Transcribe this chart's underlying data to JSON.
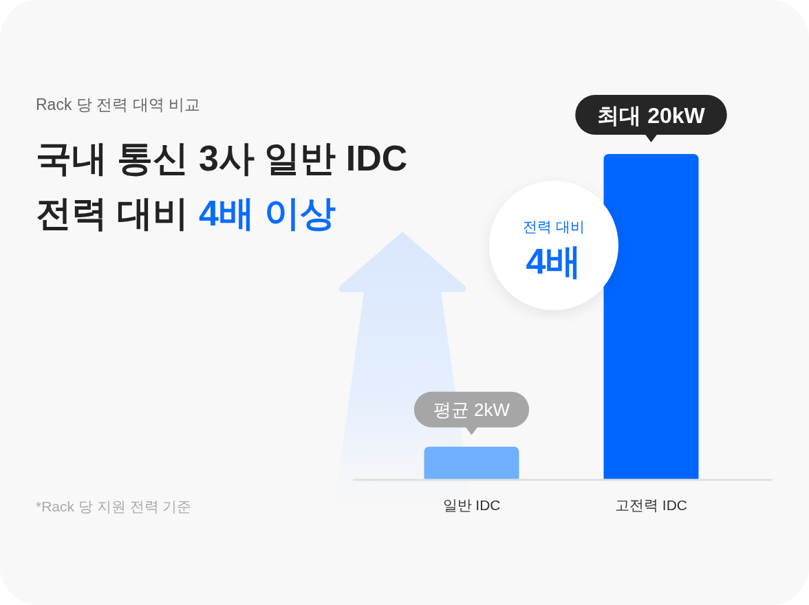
{
  "chart_data": {
    "type": "bar",
    "subtitle": "Rack 당 전력 대역 비교",
    "title": "국내 통신 3사 일반 IDC 전력 대비 4배 이상",
    "categories": [
      "일반 IDC",
      "고전력 IDC"
    ],
    "values": [
      2,
      20
    ],
    "colors": [
      "#6eb0ff",
      "#0066ff"
    ],
    "value_labels": [
      "평균 2kW",
      "최대 20kW"
    ],
    "annotations": [
      "전력 대비",
      "4배",
      "*Rack 당 지원 전력 기준"
    ]
  }
}
